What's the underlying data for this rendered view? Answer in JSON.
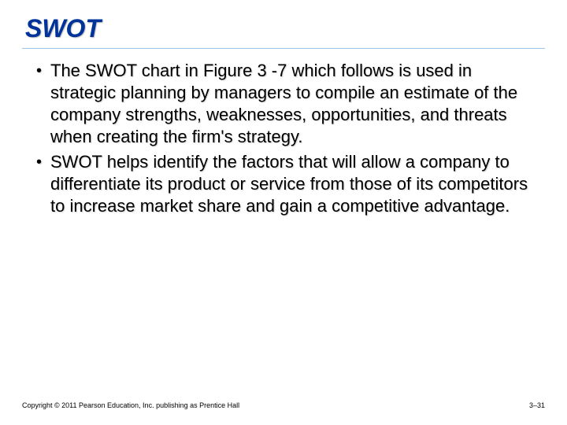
{
  "title": {
    "text": "SWOT",
    "color": "#003399",
    "fontsize": 32
  },
  "underline_color": "#9fc4e8",
  "bullets": [
    {
      "text": "The SWOT chart in Figure 3 -7  which follows  is used in strategic planning by managers to compile an estimate of the company strengths, weaknesses, opportunities, and threats when creating the firm's strategy."
    },
    {
      "text": "SWOT helps identify the factors that will allow a company to differentiate its product or service from those of its competitors to increase market share and gain a competitive advantage."
    }
  ],
  "body_fontsize": 22,
  "body_color": "#000000",
  "footer": {
    "left": "Copyright © 2011 Pearson Education, Inc. publishing as Prentice Hall",
    "right": "3–31",
    "fontsize": 9
  },
  "background_color": "#ffffff"
}
